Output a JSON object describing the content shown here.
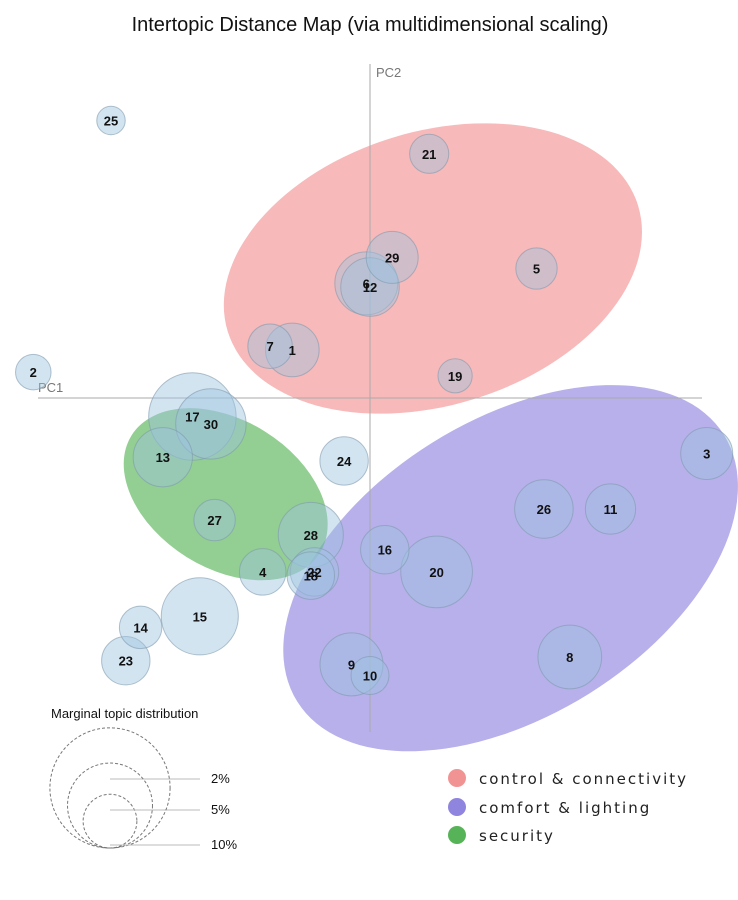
{
  "chart_data": {
    "type": "scatter",
    "title": "Intertopic Distance Map (via multidimensional scaling)",
    "xlabel": "PC1",
    "ylabel": "PC2",
    "xlim": [
      -1,
      1
    ],
    "ylim": [
      -1,
      1
    ],
    "grid": false,
    "legend_position": "bottom-right",
    "topics": [
      {
        "label": "1",
        "x": -0.21,
        "y": 0.13,
        "size": 3.2
      },
      {
        "label": "2",
        "x": -0.91,
        "y": 0.07,
        "size": 1.4
      },
      {
        "label": "3",
        "x": 0.91,
        "y": -0.15,
        "size": 3.0
      },
      {
        "label": "4",
        "x": -0.29,
        "y": -0.47,
        "size": 2.4
      },
      {
        "label": "5",
        "x": 0.45,
        "y": 0.35,
        "size": 1.9
      },
      {
        "label": "6",
        "x": -0.01,
        "y": 0.31,
        "size": 4.4
      },
      {
        "label": "7",
        "x": -0.27,
        "y": 0.14,
        "size": 2.2
      },
      {
        "label": "8",
        "x": 0.54,
        "y": -0.7,
        "size": 4.5
      },
      {
        "label": "9",
        "x": -0.05,
        "y": -0.72,
        "size": 4.4
      },
      {
        "label": "10",
        "x": 0.0,
        "y": -0.75,
        "size": 1.6
      },
      {
        "label": "11",
        "x": 0.65,
        "y": -0.3,
        "size": 2.8
      },
      {
        "label": "12",
        "x": 0.0,
        "y": 0.3,
        "size": 3.8
      },
      {
        "label": "13",
        "x": -0.56,
        "y": -0.16,
        "size": 3.9
      },
      {
        "label": "14",
        "x": -0.62,
        "y": -0.62,
        "size": 2.0
      },
      {
        "label": "15",
        "x": -0.46,
        "y": -0.59,
        "size": 6.6
      },
      {
        "label": "16",
        "x": 0.04,
        "y": -0.41,
        "size": 2.6
      },
      {
        "label": "17",
        "x": -0.48,
        "y": -0.05,
        "size": 8.5
      },
      {
        "label": "18",
        "x": -0.16,
        "y": -0.48,
        "size": 2.5
      },
      {
        "label": "19",
        "x": 0.23,
        "y": 0.06,
        "size": 1.3
      },
      {
        "label": "20",
        "x": 0.18,
        "y": -0.47,
        "size": 5.7
      },
      {
        "label": "21",
        "x": 0.16,
        "y": 0.66,
        "size": 1.7
      },
      {
        "label": "22",
        "x": -0.15,
        "y": -0.47,
        "size": 2.6
      },
      {
        "label": "23",
        "x": -0.66,
        "y": -0.71,
        "size": 2.6
      },
      {
        "label": "24",
        "x": -0.07,
        "y": -0.17,
        "size": 2.6
      },
      {
        "label": "25",
        "x": -0.7,
        "y": 0.75,
        "size": 0.9
      },
      {
        "label": "26",
        "x": 0.47,
        "y": -0.3,
        "size": 3.8
      },
      {
        "label": "27",
        "x": -0.42,
        "y": -0.33,
        "size": 1.9
      },
      {
        "label": "28",
        "x": -0.16,
        "y": -0.37,
        "size": 4.7
      },
      {
        "label": "29",
        "x": 0.06,
        "y": 0.38,
        "size": 3.0
      },
      {
        "label": "30",
        "x": -0.43,
        "y": -0.07,
        "size": 5.5
      }
    ],
    "clusters": [
      {
        "name": "control & connectivity",
        "color": "#f08080",
        "cx": 0.17,
        "cy": 0.35,
        "rx": 0.58,
        "ry": 0.37,
        "rotation": -17
      },
      {
        "name": "comfort & lighting",
        "color": "#7b6fd8",
        "cx": 0.38,
        "cy": -0.46,
        "rx": 0.68,
        "ry": 0.4,
        "rotation": -32
      },
      {
        "name": "security",
        "color": "#3aa63a",
        "cx": -0.39,
        "cy": -0.26,
        "rx": 0.3,
        "ry": 0.2,
        "rotation": 32
      }
    ],
    "marginal_distribution": {
      "title": "Marginal topic distribution",
      "levels": [
        {
          "label": "2%",
          "size": 2
        },
        {
          "label": "5%",
          "size": 5
        },
        {
          "label": "10%",
          "size": 10
        }
      ]
    }
  }
}
